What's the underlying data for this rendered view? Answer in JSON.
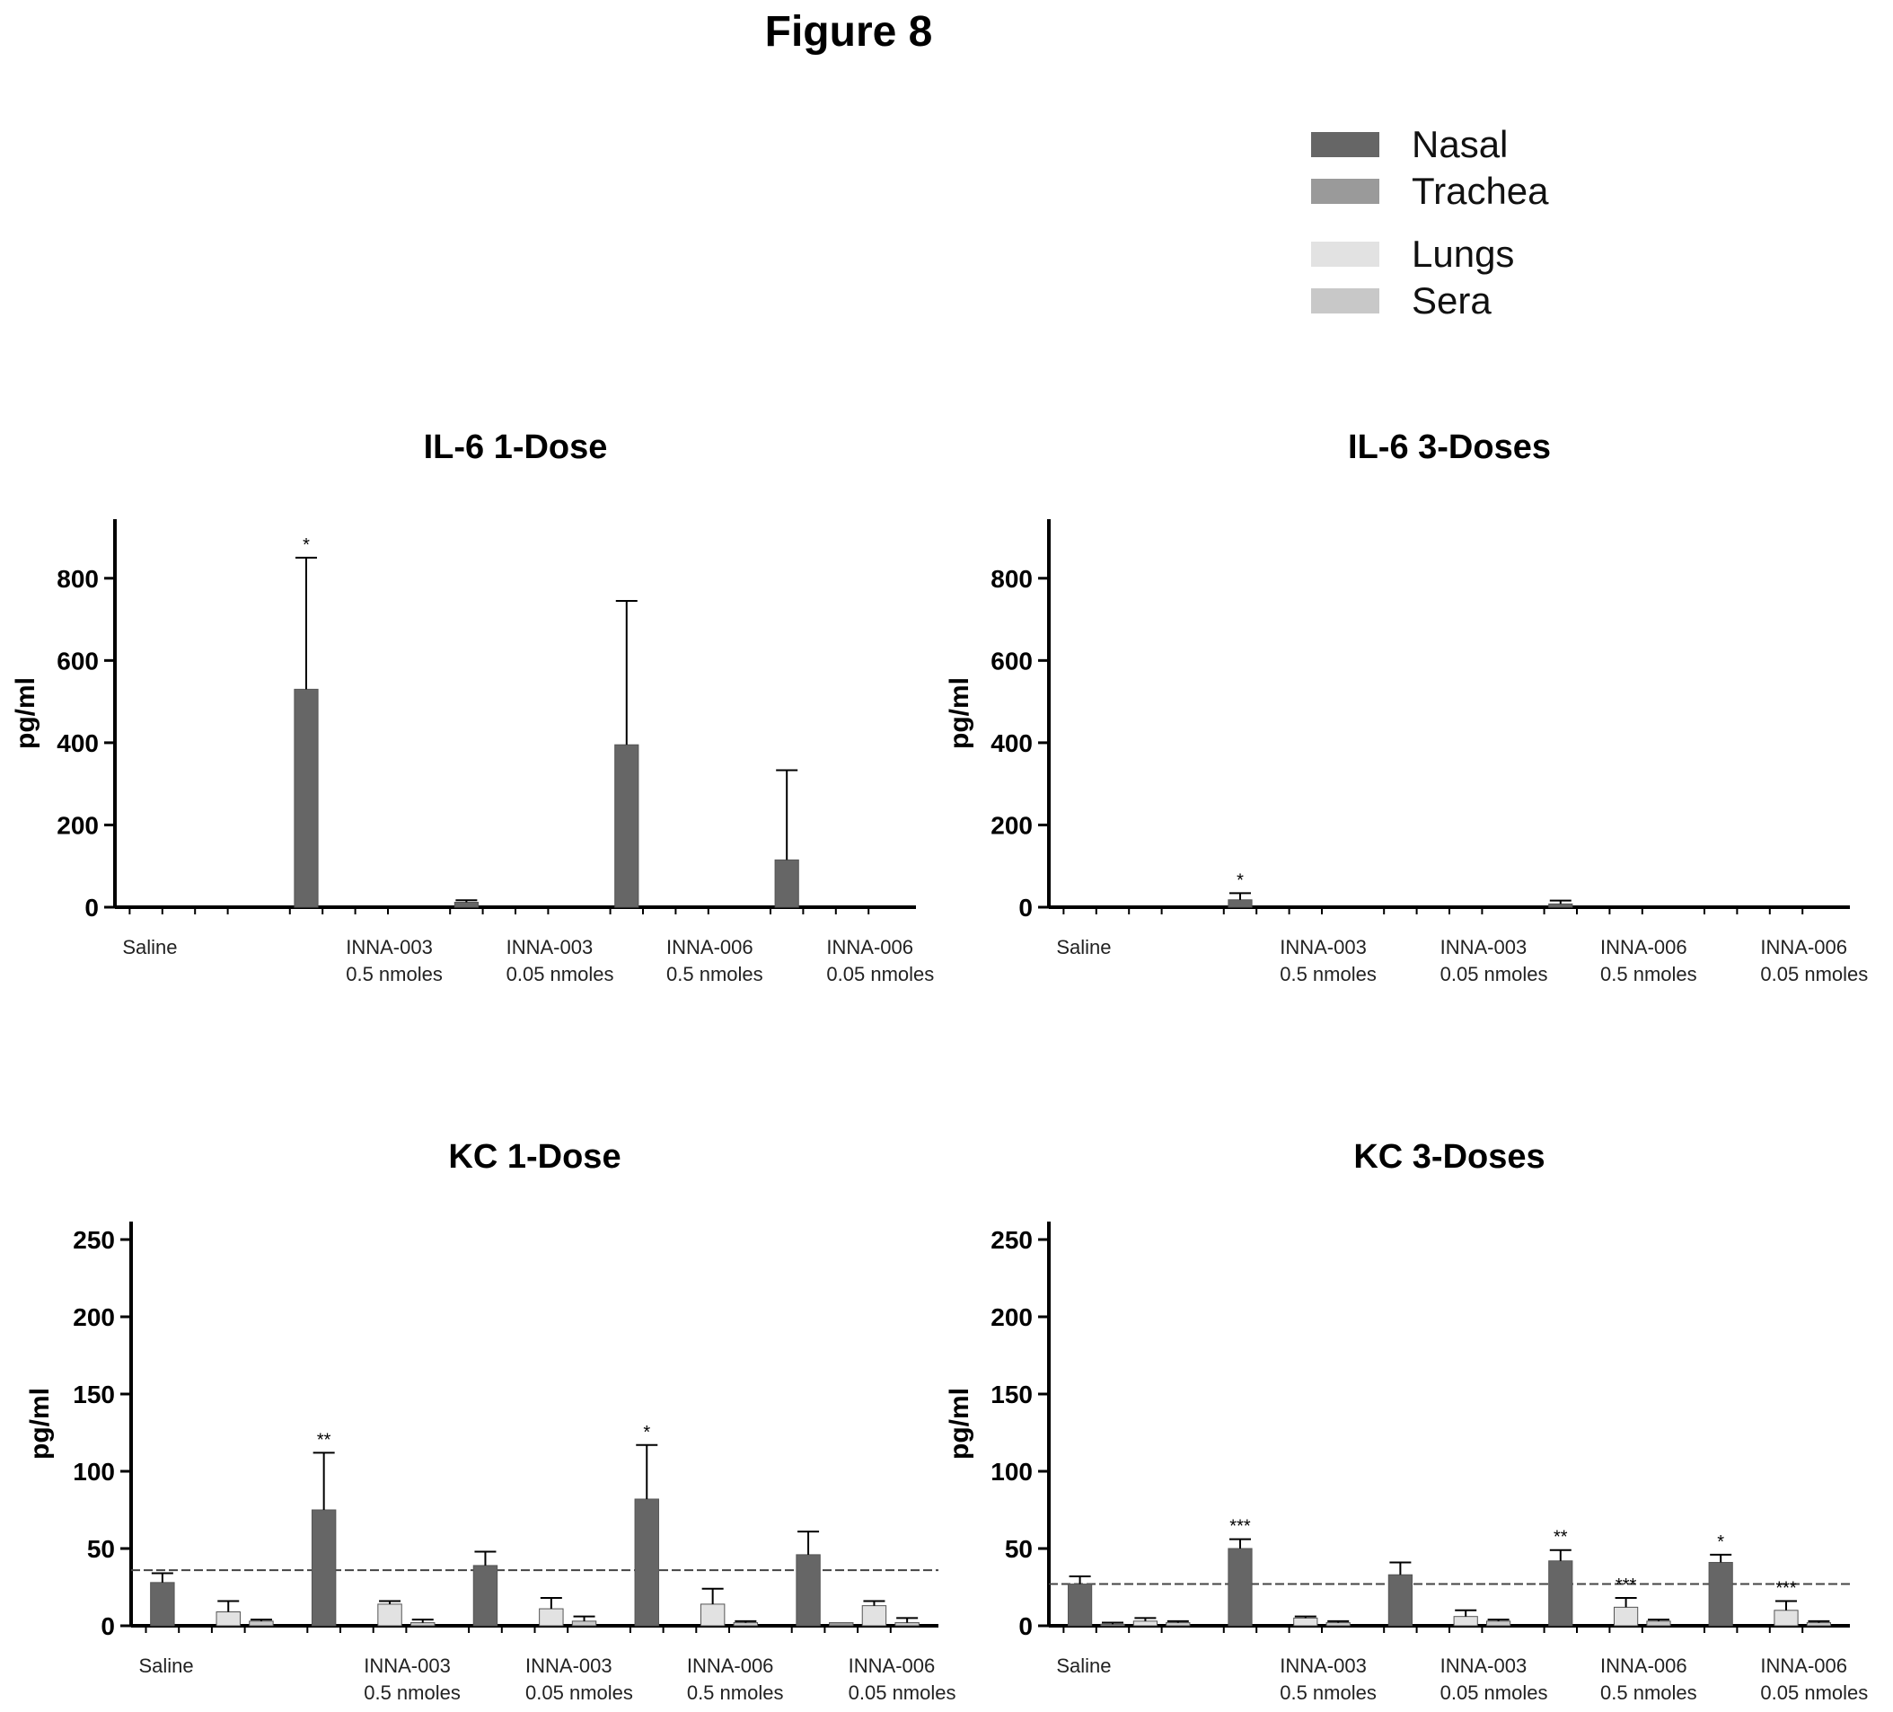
{
  "figure": {
    "title": "Figure 8"
  },
  "legend": [
    {
      "label": "Nasal",
      "color": "#666666"
    },
    {
      "label": "Trachea",
      "color": "#9a9a9a"
    },
    {
      "label": "Lungs",
      "color": "#e2e2e2"
    },
    {
      "label": "Sera",
      "color": "#c8c8c8"
    }
  ],
  "chart_data": [
    {
      "type": "bar",
      "title": "IL-6 1-Dose",
      "ylabel": "pg/ml",
      "ylim": [
        0,
        900
      ],
      "yticks": [
        0,
        200,
        400,
        600,
        800
      ],
      "categories": [
        "Saline",
        "INNA-003 0.5 nmoles",
        "INNA-003 0.05 nmoles",
        "INNA-006 0.5 nmoles",
        "INNA-006 0.05 nmoles"
      ],
      "category_labels": [
        [
          "Saline"
        ],
        [
          "INNA-003",
          "0.5 nmoles"
        ],
        [
          "INNA-003",
          "0.05 nmoles"
        ],
        [
          "INNA-006",
          "0.5 nmoles"
        ],
        [
          "INNA-006",
          "0.05 nmoles"
        ]
      ],
      "series": [
        {
          "name": "Nasal",
          "values": [
            0,
            530,
            12,
            395,
            115
          ],
          "errors": [
            0,
            320,
            5,
            350,
            218
          ],
          "annotations": [
            "",
            "*",
            "",
            "",
            ""
          ]
        },
        {
          "name": "Trachea",
          "values": [
            0,
            0,
            0,
            0,
            0
          ]
        },
        {
          "name": "Lungs",
          "values": [
            0,
            0,
            0,
            0,
            0
          ]
        },
        {
          "name": "Sera",
          "values": [
            0,
            0,
            0,
            0,
            0
          ]
        }
      ]
    },
    {
      "type": "bar",
      "title": "IL-6 3-Doses",
      "ylabel": "pg/ml",
      "ylim": [
        0,
        900
      ],
      "yticks": [
        0,
        200,
        400,
        600,
        800
      ],
      "categories": [
        "Saline",
        "INNA-003 0.5 nmoles",
        "INNA-003 0.05 nmoles",
        "INNA-006 0.5 nmoles",
        "INNA-006 0.05 nmoles"
      ],
      "category_labels": [
        [
          "Saline"
        ],
        [
          "INNA-003",
          "0.5 nmoles"
        ],
        [
          "INNA-003",
          "0.05 nmoles"
        ],
        [
          "INNA-006",
          "0.5 nmoles"
        ],
        [
          "INNA-006",
          "0.05 nmoles"
        ]
      ],
      "series": [
        {
          "name": "Nasal",
          "values": [
            0,
            18,
            0,
            8,
            0
          ],
          "errors": [
            0,
            16,
            0,
            8,
            0
          ],
          "annotations": [
            "",
            "*",
            "",
            "",
            ""
          ]
        },
        {
          "name": "Trachea",
          "values": [
            0,
            0,
            0,
            0,
            0
          ]
        },
        {
          "name": "Lungs",
          "values": [
            0,
            0,
            0,
            0,
            0
          ]
        },
        {
          "name": "Sera",
          "values": [
            0,
            0,
            0,
            0,
            0
          ]
        }
      ]
    },
    {
      "type": "bar",
      "title": "KC 1-Dose",
      "ylabel": "pg/ml",
      "ylim": [
        0,
        250
      ],
      "yticks": [
        0,
        50,
        100,
        150,
        200,
        250
      ],
      "reference_line": 36,
      "categories": [
        "Saline",
        "INNA-003 0.5 nmoles",
        "INNA-003 0.05 nmoles",
        "INNA-006 0.5 nmoles",
        "INNA-006 0.05 nmoles"
      ],
      "category_labels": [
        [
          "Saline"
        ],
        [
          "INNA-003",
          "0.5 nmoles"
        ],
        [
          "INNA-003",
          "0.05 nmoles"
        ],
        [
          "INNA-006",
          "0.5 nmoles"
        ],
        [
          "INNA-006",
          "0.05 nmoles"
        ]
      ],
      "series": [
        {
          "name": "Nasal",
          "values": [
            28,
            75,
            39,
            82,
            46
          ],
          "errors": [
            6,
            37,
            9,
            35,
            15
          ],
          "annotations": [
            "",
            "**",
            "",
            "*",
            ""
          ]
        },
        {
          "name": "Trachea",
          "values": [
            0,
            0,
            0,
            0,
            2
          ],
          "errors": [
            0,
            0,
            0,
            0,
            0
          ]
        },
        {
          "name": "Lungs",
          "values": [
            9,
            14,
            11,
            14,
            13
          ],
          "errors": [
            7,
            2,
            7,
            10,
            3
          ]
        },
        {
          "name": "Sera",
          "values": [
            3,
            2,
            3,
            2,
            2
          ],
          "errors": [
            1,
            2,
            3,
            1,
            3
          ]
        }
      ]
    },
    {
      "type": "bar",
      "title": "KC 3-Doses",
      "ylabel": "pg/ml",
      "ylim": [
        0,
        250
      ],
      "yticks": [
        0,
        50,
        100,
        150,
        200,
        250
      ],
      "reference_line": 27,
      "categories": [
        "Saline",
        "INNA-003 0.5 nmoles",
        "INNA-003 0.05 nmoles",
        "INNA-006 0.5 nmoles",
        "INNA-006 0.05 nmoles"
      ],
      "category_labels": [
        [
          "Saline"
        ],
        [
          "INNA-003",
          "0.5 nmoles"
        ],
        [
          "INNA-003",
          "0.05 nmoles"
        ],
        [
          "INNA-006",
          "0.5 nmoles"
        ],
        [
          "INNA-006",
          "0.05 nmoles"
        ]
      ],
      "series": [
        {
          "name": "Nasal",
          "values": [
            27,
            50,
            33,
            42,
            41
          ],
          "errors": [
            5,
            6,
            8,
            7,
            5
          ],
          "annotations": [
            "",
            "***",
            "",
            "**",
            "*"
          ]
        },
        {
          "name": "Trachea",
          "values": [
            1,
            0,
            0,
            0,
            0
          ],
          "errors": [
            1,
            0,
            0,
            0,
            0
          ]
        },
        {
          "name": "Lungs",
          "values": [
            3,
            5,
            6,
            12,
            10
          ],
          "errors": [
            2,
            1,
            4,
            6,
            6
          ],
          "annotations": [
            "",
            "",
            "",
            "***",
            "***"
          ]
        },
        {
          "name": "Sera",
          "values": [
            2,
            2,
            3,
            3,
            2
          ],
          "errors": [
            1,
            1,
            1,
            1,
            1
          ]
        }
      ]
    }
  ]
}
